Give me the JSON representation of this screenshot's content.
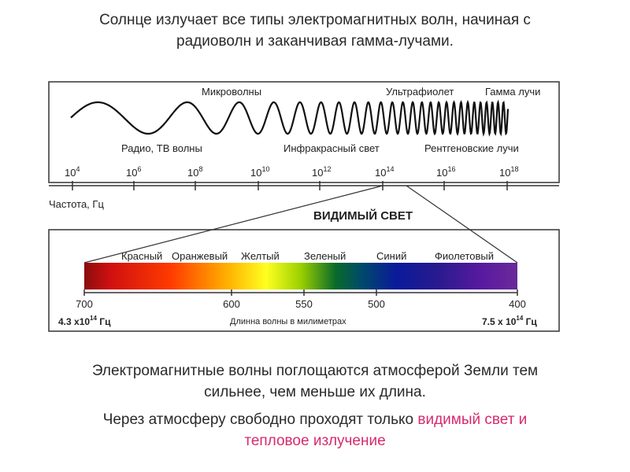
{
  "intro": {
    "line1": "Солнце излучает все типы электромагнитных волн, начиная с",
    "line2": "радиоволн и заканчивая гамма-лучами."
  },
  "spectrum": {
    "labels_top": [
      "Микроволны",
      "Ультрафиолет",
      "Гамма лучи"
    ],
    "labels_bottom": [
      "Радио, ТВ волны",
      "Инфракрасный свет",
      "Рентгеновские лучи"
    ],
    "tick_base": "10",
    "tick_exponents": [
      "4",
      "6",
      "8",
      "10",
      "12",
      "14",
      "16",
      "18"
    ],
    "axis_label": "Частота, Гц"
  },
  "visible": {
    "title": "ВИДИМЫЙ СВЕТ",
    "colors": [
      "Красный",
      "Оранжевый",
      "Желтый",
      "Зеленый",
      "Синий",
      "Фиолетовый"
    ],
    "wavelength_ticks": [
      "700",
      "600",
      "550",
      "500",
      "400"
    ],
    "freq_left": {
      "mantissa": "4.3 x10",
      "exponent": "14",
      "unit": " Гц"
    },
    "freq_right": {
      "mantissa": "7.5 x 10",
      "exponent": "14",
      "unit": " Гц"
    },
    "axis_label": "Длинна волны в милиметрах"
  },
  "notes": {
    "absorb_line1": "Электромагнитные волны поглощаются атмосферой Земли тем",
    "absorb_line2": "сильнее, чем меньше их длина.",
    "through_prefix": "Через атмосферу свободно проходят только ",
    "through_highlight1": "видимый свет и",
    "through_highlight2": "тепловое излучение"
  },
  "colors": {
    "highlight": "#d62a6e",
    "frame": "#333333"
  }
}
